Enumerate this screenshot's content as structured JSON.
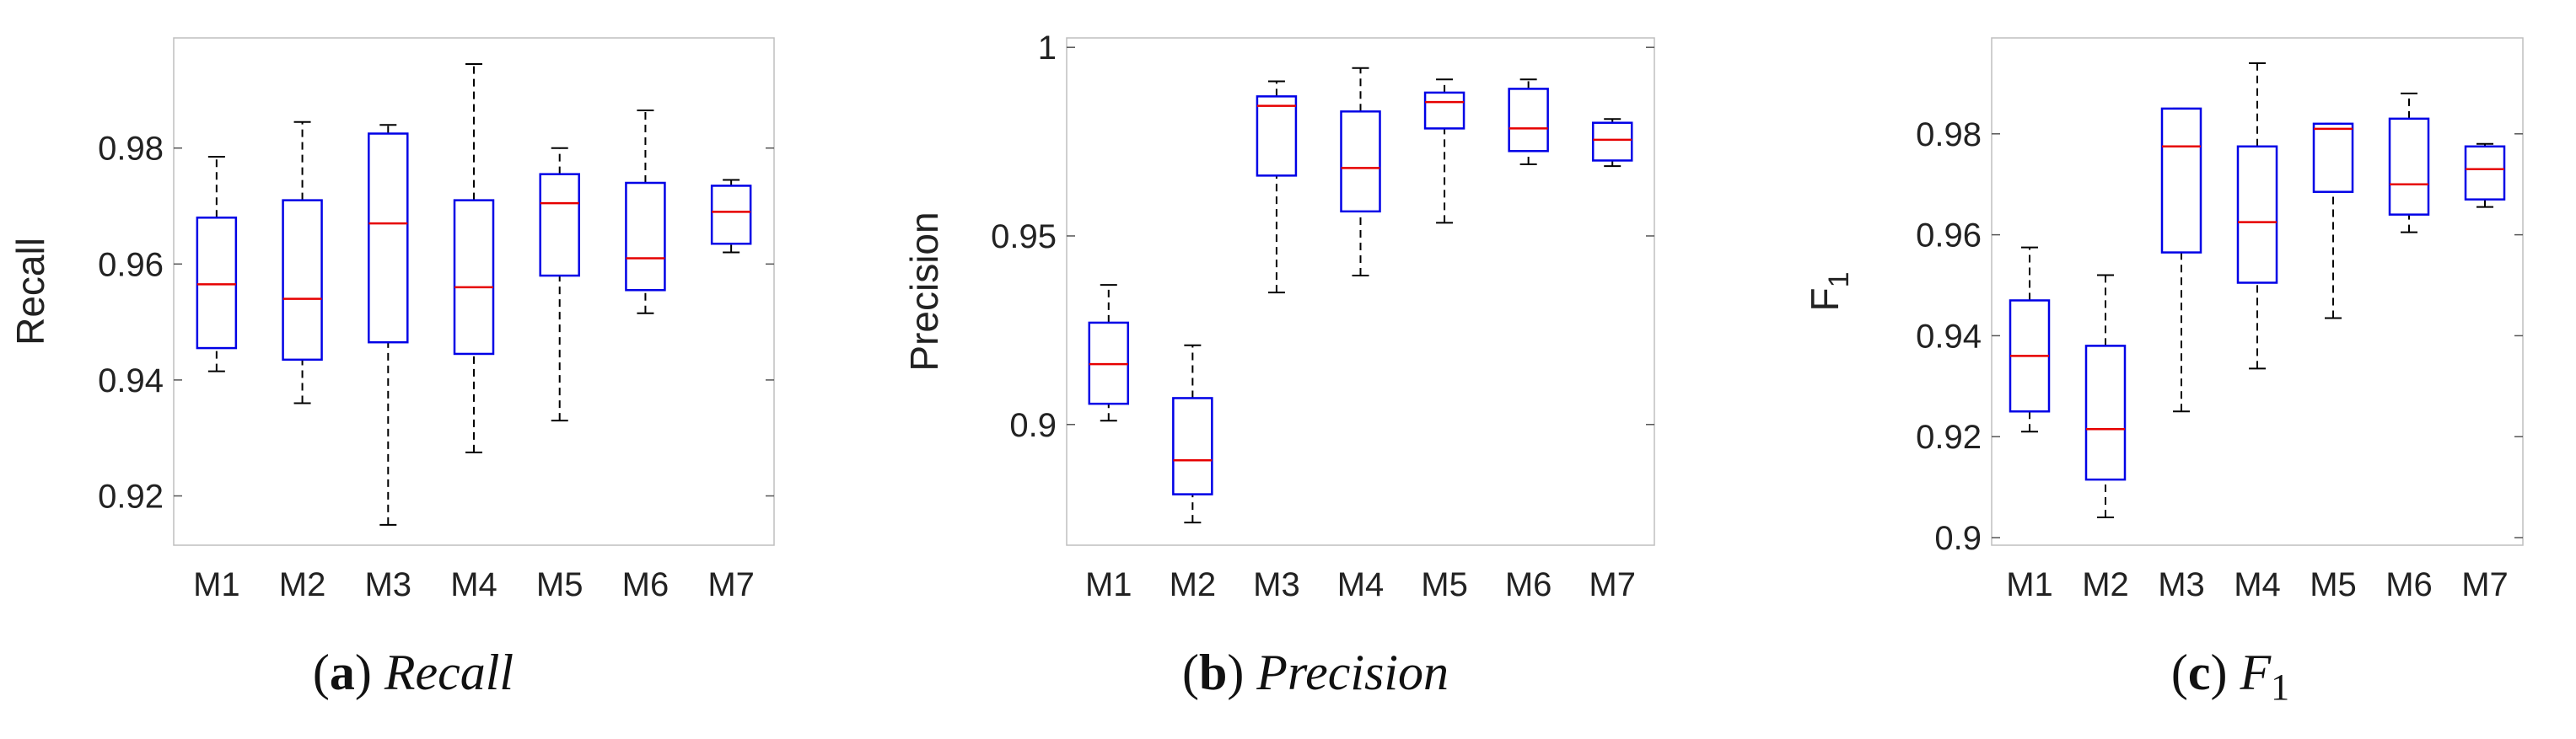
{
  "colors": {
    "box": "#0000e6",
    "median": "#e60000",
    "whisker": "#000000",
    "frame": "#bfbfbf",
    "text": "#222222"
  },
  "chart_data": [
    {
      "type": "boxplot",
      "caption_label": "(a)",
      "caption_name": "Recall",
      "ylabel": "Recall",
      "ylim": [
        0.9115,
        0.999
      ],
      "yticks": [
        0.92,
        0.94,
        0.96,
        0.98
      ],
      "ytick_labels": [
        "0.92",
        "0.94",
        "0.96",
        "0.98"
      ],
      "grid": false,
      "categories": [
        "M1",
        "M2",
        "M3",
        "M4",
        "M5",
        "M6",
        "M7"
      ],
      "boxes": [
        {
          "min": 0.9415,
          "q1": 0.9455,
          "median": 0.9565,
          "q3": 0.968,
          "max": 0.9785
        },
        {
          "min": 0.936,
          "q1": 0.9435,
          "median": 0.954,
          "q3": 0.971,
          "max": 0.9845
        },
        {
          "min": 0.915,
          "q1": 0.9465,
          "median": 0.967,
          "q3": 0.9825,
          "max": 0.984
        },
        {
          "min": 0.9275,
          "q1": 0.9445,
          "median": 0.956,
          "q3": 0.971,
          "max": 0.9945
        },
        {
          "min": 0.933,
          "q1": 0.958,
          "median": 0.9705,
          "q3": 0.9755,
          "max": 0.98
        },
        {
          "min": 0.9515,
          "q1": 0.9555,
          "median": 0.961,
          "q3": 0.974,
          "max": 0.9865
        },
        {
          "min": 0.962,
          "q1": 0.9635,
          "median": 0.969,
          "q3": 0.9735,
          "max": 0.9745
        }
      ]
    },
    {
      "type": "boxplot",
      "caption_label": "(b)",
      "caption_name": "Precision",
      "ylabel": "Precision",
      "ylim": [
        0.868,
        1.0025
      ],
      "yticks": [
        0.9,
        0.95,
        1.0
      ],
      "ytick_labels": [
        "0.9",
        "0.95",
        "1"
      ],
      "grid": false,
      "categories": [
        "M1",
        "M2",
        "M3",
        "M4",
        "M5",
        "M6",
        "M7"
      ],
      "boxes": [
        {
          "min": 0.901,
          "q1": 0.9055,
          "median": 0.916,
          "q3": 0.927,
          "max": 0.937
        },
        {
          "min": 0.874,
          "q1": 0.8815,
          "median": 0.8905,
          "q3": 0.907,
          "max": 0.921
        },
        {
          "min": 0.935,
          "q1": 0.966,
          "median": 0.9845,
          "q3": 0.987,
          "max": 0.991
        },
        {
          "min": 0.9395,
          "q1": 0.9565,
          "median": 0.968,
          "q3": 0.983,
          "max": 0.9945
        },
        {
          "min": 0.9535,
          "q1": 0.9785,
          "median": 0.9855,
          "q3": 0.988,
          "max": 0.9915
        },
        {
          "min": 0.969,
          "q1": 0.9725,
          "median": 0.9785,
          "q3": 0.989,
          "max": 0.9915
        },
        {
          "min": 0.9685,
          "q1": 0.97,
          "median": 0.9755,
          "q3": 0.98,
          "max": 0.981
        }
      ]
    },
    {
      "type": "boxplot",
      "caption_label": "(c)",
      "caption_name": "F",
      "caption_sub": "1",
      "ylabel": "F",
      "ylabel_sub": "1",
      "ylim": [
        0.8985,
        0.999
      ],
      "yticks": [
        0.9,
        0.92,
        0.94,
        0.96,
        0.98
      ],
      "ytick_labels": [
        "0.9",
        "0.92",
        "0.94",
        "0.96",
        "0.98"
      ],
      "grid": false,
      "categories": [
        "M1",
        "M2",
        "M3",
        "M4",
        "M5",
        "M6",
        "M7"
      ],
      "boxes": [
        {
          "min": 0.921,
          "q1": 0.925,
          "median": 0.936,
          "q3": 0.947,
          "max": 0.9575
        },
        {
          "min": 0.904,
          "q1": 0.9115,
          "median": 0.9215,
          "q3": 0.938,
          "max": 0.952
        },
        {
          "min": 0.925,
          "q1": 0.9565,
          "median": 0.9775,
          "q3": 0.985,
          "max": 0.985
        },
        {
          "min": 0.9335,
          "q1": 0.9505,
          "median": 0.9625,
          "q3": 0.9775,
          "max": 0.994
        },
        {
          "min": 0.9435,
          "q1": 0.9685,
          "median": 0.981,
          "q3": 0.982,
          "max": 0.982
        },
        {
          "min": 0.9605,
          "q1": 0.964,
          "median": 0.97,
          "q3": 0.983,
          "max": 0.988
        },
        {
          "min": 0.9655,
          "q1": 0.967,
          "median": 0.973,
          "q3": 0.9775,
          "max": 0.978
        }
      ]
    }
  ]
}
